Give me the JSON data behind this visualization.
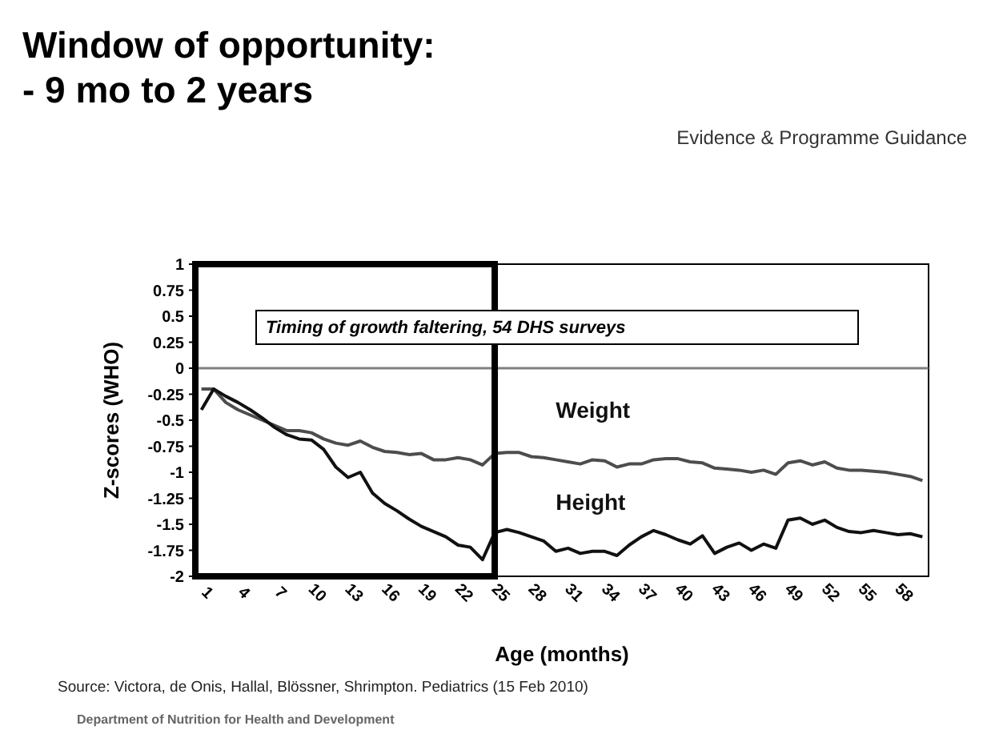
{
  "chart_data": {
    "type": "line",
    "title": "Window of opportunity:\n- 9 mo to 2 years",
    "subtitle": "Evidence & Programme Guidance",
    "xlabel": "Age (months)",
    "ylabel": "Z-scores (WHO)",
    "categories": [
      "1",
      null,
      null,
      "4",
      null,
      null,
      "7",
      null,
      null,
      "10",
      null,
      null,
      "13",
      null,
      null,
      "16",
      null,
      null,
      "19",
      null,
      null,
      "22",
      null,
      null,
      "25",
      null,
      null,
      "28",
      null,
      null,
      "31",
      null,
      null,
      "34",
      null,
      null,
      "37",
      null,
      null,
      "40",
      null,
      null,
      "43",
      null,
      null,
      "46",
      null,
      null,
      "49",
      null,
      null,
      "52",
      null,
      null,
      "55",
      null,
      null,
      "58",
      null,
      null
    ],
    "series": [
      {
        "name": "Weight",
        "color": "#4d4d4d",
        "values": [
          -0.2,
          -0.2,
          -0.33,
          -0.4,
          -0.45,
          -0.5,
          -0.55,
          -0.6,
          -0.6,
          -0.62,
          -0.68,
          -0.72,
          -0.74,
          -0.7,
          -0.76,
          -0.8,
          -0.81,
          -0.83,
          -0.82,
          -0.88,
          -0.88,
          -0.86,
          -0.88,
          -0.93,
          -0.82,
          -0.81,
          -0.81,
          -0.85,
          -0.86,
          -0.88,
          -0.9,
          -0.92,
          -0.88,
          -0.89,
          -0.95,
          -0.92,
          -0.92,
          -0.88,
          -0.87,
          -0.87,
          -0.9,
          -0.91,
          -0.96,
          -0.97,
          -0.98,
          -1.0,
          -0.98,
          -1.02,
          -0.91,
          -0.89,
          -0.93,
          -0.9,
          -0.96,
          -0.98,
          -0.98,
          -0.99,
          -1.0,
          -1.02,
          -1.04,
          -1.08
        ]
      },
      {
        "name": "Height",
        "color": "#111111",
        "values": [
          -0.4,
          -0.2,
          -0.27,
          -0.33,
          -0.4,
          -0.48,
          -0.57,
          -0.64,
          -0.68,
          -0.69,
          -0.78,
          -0.95,
          -1.05,
          -1.0,
          -1.2,
          -1.3,
          -1.37,
          -1.45,
          -1.52,
          -1.57,
          -1.62,
          -1.7,
          -1.72,
          -1.84,
          -1.58,
          -1.55,
          -1.58,
          -1.62,
          -1.66,
          -1.76,
          -1.73,
          -1.78,
          -1.76,
          -1.76,
          -1.8,
          -1.7,
          -1.62,
          -1.56,
          -1.6,
          -1.65,
          -1.69,
          -1.61,
          -1.78,
          -1.72,
          -1.68,
          -1.75,
          -1.69,
          -1.73,
          -1.46,
          -1.44,
          -1.5,
          -1.46,
          -1.53,
          -1.57,
          -1.58,
          -1.56,
          -1.58,
          -1.6,
          -1.59,
          -1.62
        ]
      }
    ],
    "ylim": [
      -2,
      1
    ],
    "yticks": [
      1,
      0.75,
      0.5,
      0.25,
      0,
      -0.25,
      -0.5,
      -0.75,
      -1,
      -1.25,
      -1.5,
      -1.75,
      -2
    ],
    "ref_lines": [
      {
        "axis": "y",
        "value": 0,
        "color": "#808080"
      }
    ],
    "grid": false,
    "legend": false,
    "marker": "none",
    "line_style": "solid",
    "annotations": [
      "Timing of growth faltering, 54 DHS surveys",
      "Source: Victora, de Onis, Hallal, Blössner, Shrimpton. Pediatrics (15 Feb 2010)",
      "Department of Nutrition for Health and Development"
    ]
  }
}
